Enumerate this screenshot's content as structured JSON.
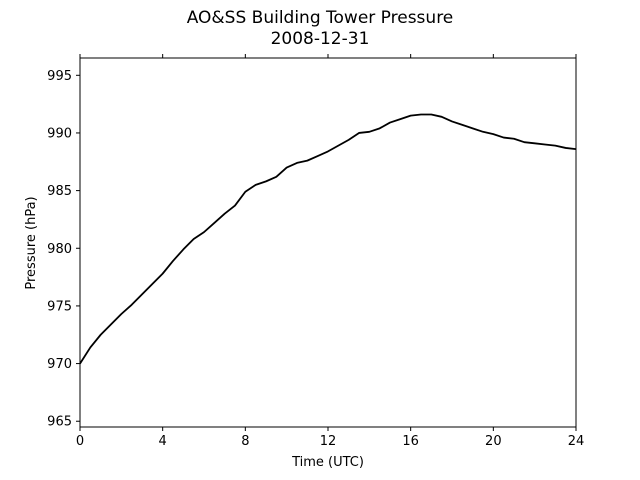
{
  "chart_data": {
    "type": "line",
    "title": "AO&SS Building Tower Pressure",
    "subtitle": "2008-12-31",
    "xlabel": "Time (UTC)",
    "ylabel": "Pressure (hPa)",
    "xlim": [
      0,
      24
    ],
    "ylim": [
      964.5,
      996.5
    ],
    "xticks": [
      0,
      4,
      8,
      12,
      16,
      20,
      24
    ],
    "yticks": [
      965,
      970,
      975,
      980,
      985,
      990,
      995
    ],
    "grid": false,
    "line_color": "#000000",
    "series": [
      {
        "x": [
          0,
          0.5,
          1,
          1.5,
          2,
          2.5,
          3,
          3.5,
          4,
          4.5,
          5,
          5.5,
          6,
          6.5,
          7,
          7.5,
          8,
          8.5,
          9,
          9.5,
          10,
          10.5,
          11,
          11.5,
          12,
          12.5,
          13,
          13.5,
          14,
          14.5,
          15,
          15.5,
          16,
          16.5,
          17,
          17.5,
          18,
          18.5,
          19,
          19.5,
          20,
          20.5,
          21,
          21.5,
          22,
          22.5,
          23,
          23.5,
          24
        ],
        "values": [
          970.0,
          971.4,
          972.5,
          973.4,
          974.3,
          975.1,
          976.0,
          976.9,
          977.8,
          978.9,
          979.9,
          980.8,
          981.4,
          982.2,
          983.0,
          983.7,
          984.9,
          985.5,
          985.8,
          986.2,
          987.0,
          987.4,
          987.6,
          988.0,
          988.4,
          988.9,
          989.4,
          990.0,
          990.1,
          990.4,
          990.9,
          991.2,
          991.5,
          991.6,
          991.6,
          991.4,
          991.0,
          990.7,
          990.4,
          990.1,
          989.9,
          989.6,
          989.5,
          989.2,
          989.1,
          989.0,
          988.9,
          988.7,
          988.6
        ]
      }
    ]
  }
}
